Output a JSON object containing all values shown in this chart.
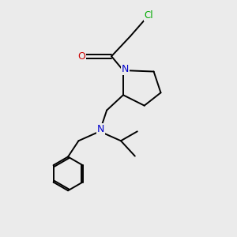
{
  "background_color": "#ebebeb",
  "atom_colors": {
    "C": "#000000",
    "N": "#0000cc",
    "O": "#cc0000",
    "Cl": "#00aa00"
  },
  "line_color": "#000000",
  "line_width": 1.4,
  "figsize": [
    3.0,
    3.0
  ],
  "dpi": 100,
  "xlim": [
    0,
    10
  ],
  "ylim": [
    0,
    10
  ]
}
